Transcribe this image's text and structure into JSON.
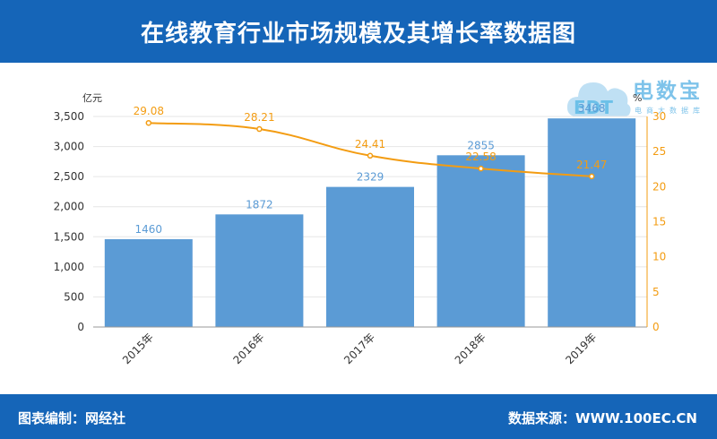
{
  "header": {
    "title": "在线教育行业市场规模及其增长率数据图"
  },
  "footer": {
    "left": "图表编制：网经社",
    "right": "数据来源：WWW.100EC.CN"
  },
  "logo": {
    "name": "电数宝",
    "sub": "电商大数据库",
    "mark": "EDT"
  },
  "colors": {
    "header": "#1565b8",
    "bar": "#5b9bd5",
    "bar_label": "#5b9bd5",
    "line": "#f39c12"
  },
  "chart_data": {
    "type": "bar+line",
    "categories": [
      "2015年",
      "2016年",
      "2017年",
      "2018年",
      "2019年"
    ],
    "series": [
      {
        "type": "bar",
        "values": [
          1460,
          1872,
          2329,
          2855,
          3468
        ],
        "axis": "left"
      },
      {
        "type": "line",
        "values": [
          29.08,
          28.21,
          24.41,
          22.58,
          21.47
        ],
        "axis": "right"
      }
    ],
    "y_left": {
      "unit": "亿元",
      "min": 0,
      "max": 3500,
      "ticks": [
        "0",
        "500",
        "1,000",
        "1,500",
        "2,000",
        "2,500",
        "3,000",
        "3,500"
      ],
      "tick_values": [
        0,
        500,
        1000,
        1500,
        2000,
        2500,
        3000,
        3500
      ]
    },
    "y_right": {
      "unit": "%",
      "min": 0,
      "max": 30,
      "ticks": [
        "0",
        "5",
        "10",
        "15",
        "20",
        "25",
        "30"
      ],
      "tick_values": [
        0,
        5,
        10,
        15,
        20,
        25,
        30
      ]
    },
    "grid": true
  }
}
